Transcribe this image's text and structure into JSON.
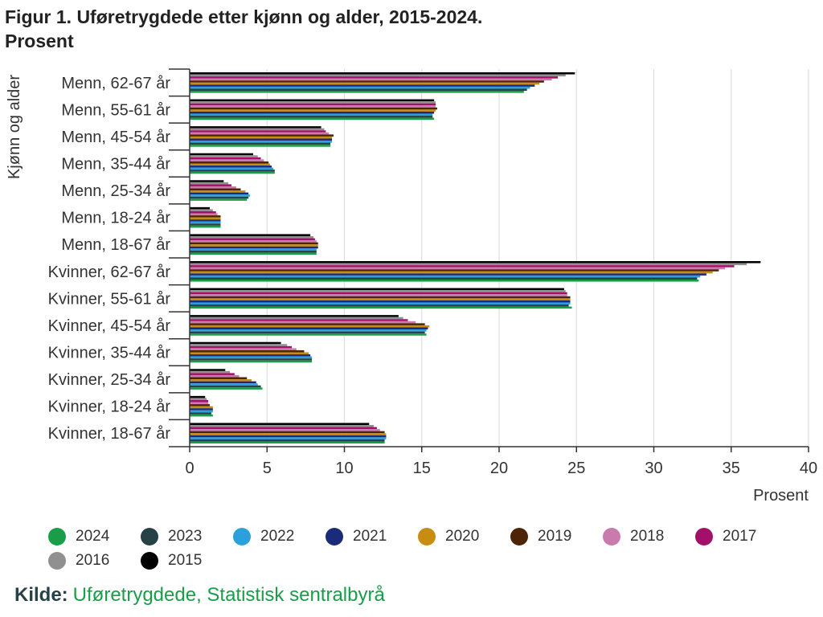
{
  "header": {
    "title_line1": "Figur 1. Uføretrygdede etter kjønn og alder, 2015-2024.",
    "title_line2": "Prosent"
  },
  "source": {
    "label": "Kilde:",
    "link_text": "Uføretrygdede, Statistisk sentralbyrå"
  },
  "chart_data": {
    "type": "bar",
    "orientation": "horizontal",
    "title": "Figur 1. Uføretrygdede etter kjønn og alder, 2015-2024. Prosent",
    "xlabel": "Prosent",
    "ylabel": "Kjønn og alder",
    "xlim": [
      0,
      40
    ],
    "xticks": [
      0,
      5,
      10,
      15,
      20,
      25,
      30,
      35,
      40
    ],
    "grid": "vertical",
    "legend_position": "bottom",
    "categories": [
      "Menn, 62-67 år",
      "Menn, 55-61 år",
      "Menn, 45-54 år",
      "Menn, 35-44 år",
      "Menn, 25-34 år",
      "Menn, 18-24 år",
      "Menn, 18-67 år",
      "Kvinner, 62-67 år",
      "Kvinner, 55-61 år",
      "Kvinner, 45-54 år",
      "Kvinner, 35-44 år",
      "Kvinner, 25-34 år",
      "Kvinner, 18-24 år",
      "Kvinner, 18-67 år"
    ],
    "series": [
      {
        "name": "2015",
        "color": "#000000",
        "values": [
          24.9,
          15.8,
          8.5,
          4.1,
          2.2,
          1.3,
          7.8,
          36.9,
          24.2,
          13.5,
          5.9,
          2.3,
          1.0,
          11.6
        ]
      },
      {
        "name": "2016",
        "color": "#909090",
        "values": [
          24.3,
          15.9,
          8.7,
          4.4,
          2.5,
          1.5,
          8.0,
          36.0,
          24.3,
          13.8,
          6.3,
          2.6,
          1.1,
          11.9
        ]
      },
      {
        "name": "2017",
        "color": "#a3106a",
        "values": [
          23.8,
          15.9,
          8.8,
          4.6,
          2.7,
          1.7,
          8.1,
          35.2,
          24.4,
          14.1,
          6.6,
          2.9,
          1.2,
          12.1
        ]
      },
      {
        "name": "2018",
        "color": "#c97bae",
        "values": [
          23.4,
          15.9,
          9.0,
          4.8,
          3.0,
          1.8,
          8.2,
          34.6,
          24.4,
          14.6,
          6.9,
          3.2,
          1.2,
          12.3
        ]
      },
      {
        "name": "2019",
        "color": "#4e2406",
        "values": [
          22.9,
          16.0,
          9.3,
          5.1,
          3.3,
          2.0,
          8.3,
          34.2,
          24.6,
          15.2,
          7.4,
          3.7,
          1.3,
          12.6
        ]
      },
      {
        "name": "2020",
        "color": "#c98c12",
        "values": [
          22.6,
          15.9,
          9.2,
          5.2,
          3.6,
          2.0,
          8.3,
          33.8,
          24.6,
          15.5,
          7.7,
          4.0,
          1.5,
          12.7
        ]
      },
      {
        "name": "2021",
        "color": "#1a2b7a",
        "values": [
          22.3,
          15.8,
          9.2,
          5.3,
          3.8,
          2.0,
          8.3,
          33.4,
          24.6,
          15.4,
          7.8,
          4.3,
          1.5,
          12.7
        ]
      },
      {
        "name": "2022",
        "color": "#2aa1dd",
        "values": [
          22.0,
          15.7,
          9.2,
          5.4,
          3.9,
          2.0,
          8.2,
          33.0,
          24.6,
          15.3,
          7.9,
          4.4,
          1.5,
          12.7
        ]
      },
      {
        "name": "2023",
        "color": "#274247",
        "values": [
          21.8,
          15.7,
          9.1,
          5.5,
          3.8,
          2.0,
          8.2,
          32.8,
          24.5,
          15.2,
          7.9,
          4.6,
          1.4,
          12.6
        ]
      },
      {
        "name": "2024",
        "color": "#1a9d49",
        "values": [
          21.6,
          15.8,
          9.1,
          5.5,
          3.7,
          2.0,
          8.2,
          32.9,
          24.7,
          15.3,
          7.9,
          4.7,
          1.5,
          12.6
        ]
      }
    ],
    "legend_order": [
      "2024",
      "2023",
      "2022",
      "2021",
      "2020",
      "2019",
      "2018",
      "2017",
      "2016",
      "2015"
    ]
  }
}
